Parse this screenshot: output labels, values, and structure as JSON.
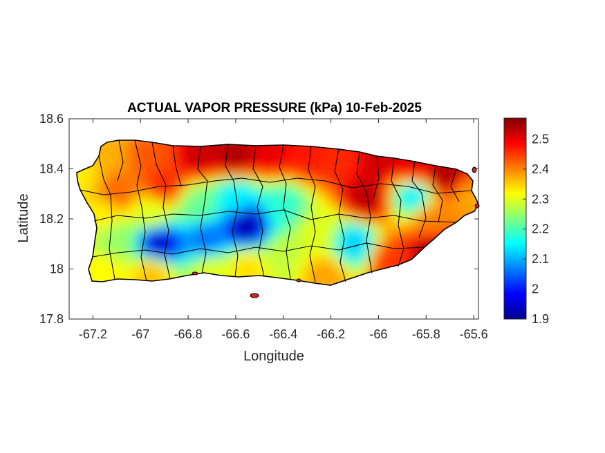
{
  "chart_data": {
    "type": "heatmap",
    "title": "ACTUAL VAPOR PRESSURE (kPa) 10-Feb-2025",
    "xlabel": "Longitude",
    "ylabel": "Latitude",
    "xlim": [
      -67.3,
      -65.58
    ],
    "ylim": [
      17.8,
      18.6
    ],
    "x_ticks": [
      -67.2,
      -67,
      -66.8,
      -66.6,
      -66.4,
      -66.2,
      -66,
      -65.8,
      -65.6
    ],
    "x_tick_labels": [
      "-67.2",
      "-67",
      "-66.8",
      "-66.6",
      "-66.4",
      "-66.2",
      "-66",
      "-65.8",
      "-65.6"
    ],
    "y_ticks": [
      17.8,
      18,
      18.2,
      18.4,
      18.6
    ],
    "y_tick_labels": [
      "17.8",
      "18",
      "18.2",
      "18.4",
      "18.6"
    ],
    "colorbar": {
      "colormap": "jet",
      "min": 1.9,
      "max": 2.57,
      "ticks": [
        1.9,
        2,
        2.1,
        2.2,
        2.3,
        2.4,
        2.5
      ],
      "tick_labels": [
        "1.9",
        "2",
        "2.1",
        "2.2",
        "2.3",
        "2.4",
        "2.5"
      ]
    },
    "field_points": [
      {
        "lon": -67.25,
        "lat": 18.38,
        "value": 2.33
      },
      {
        "lon": -67.15,
        "lat": 18.45,
        "value": 2.37
      },
      {
        "lon": -67.1,
        "lat": 18.3,
        "value": 2.42
      },
      {
        "lon": -66.95,
        "lat": 18.45,
        "value": 2.43
      },
      {
        "lon": -66.9,
        "lat": 18.33,
        "value": 2.46
      },
      {
        "lon": -66.75,
        "lat": 18.45,
        "value": 2.52
      },
      {
        "lon": -66.6,
        "lat": 18.45,
        "value": 2.54
      },
      {
        "lon": -66.45,
        "lat": 18.46,
        "value": 2.5
      },
      {
        "lon": -66.3,
        "lat": 18.45,
        "value": 2.47
      },
      {
        "lon": -66.15,
        "lat": 18.44,
        "value": 2.46
      },
      {
        "lon": -66.0,
        "lat": 18.43,
        "value": 2.52
      },
      {
        "lon": -65.85,
        "lat": 18.4,
        "value": 2.5
      },
      {
        "lon": -65.72,
        "lat": 18.37,
        "value": 2.54
      },
      {
        "lon": -65.62,
        "lat": 18.28,
        "value": 2.38
      },
      {
        "lon": -66.05,
        "lat": 18.28,
        "value": 2.53
      },
      {
        "lon": -65.85,
        "lat": 18.29,
        "value": 2.14
      },
      {
        "lon": -65.78,
        "lat": 18.2,
        "value": 2.4
      },
      {
        "lon": -65.78,
        "lat": 18.06,
        "value": 2.54
      },
      {
        "lon": -65.95,
        "lat": 18.03,
        "value": 2.45
      },
      {
        "lon": -66.1,
        "lat": 18.1,
        "value": 2.12
      },
      {
        "lon": -66.25,
        "lat": 18.15,
        "value": 2.3
      },
      {
        "lon": -66.22,
        "lat": 17.97,
        "value": 2.38
      },
      {
        "lon": -66.4,
        "lat": 18.25,
        "value": 2.18
      },
      {
        "lon": -66.4,
        "lat": 18.05,
        "value": 2.28
      },
      {
        "lon": -66.55,
        "lat": 18.17,
        "value": 1.93
      },
      {
        "lon": -66.6,
        "lat": 18.28,
        "value": 2.14
      },
      {
        "lon": -66.55,
        "lat": 18.0,
        "value": 2.34
      },
      {
        "lon": -66.72,
        "lat": 18.12,
        "value": 2.06
      },
      {
        "lon": -66.75,
        "lat": 18.25,
        "value": 2.22
      },
      {
        "lon": -66.7,
        "lat": 17.98,
        "value": 2.3
      },
      {
        "lon": -66.92,
        "lat": 18.1,
        "value": 1.95
      },
      {
        "lon": -66.95,
        "lat": 18.22,
        "value": 2.3
      },
      {
        "lon": -66.95,
        "lat": 17.98,
        "value": 2.36
      },
      {
        "lon": -67.1,
        "lat": 18.12,
        "value": 2.25
      },
      {
        "lon": -67.15,
        "lat": 18.22,
        "value": 2.33
      },
      {
        "lon": -67.15,
        "lat": 17.98,
        "value": 2.32
      }
    ]
  }
}
